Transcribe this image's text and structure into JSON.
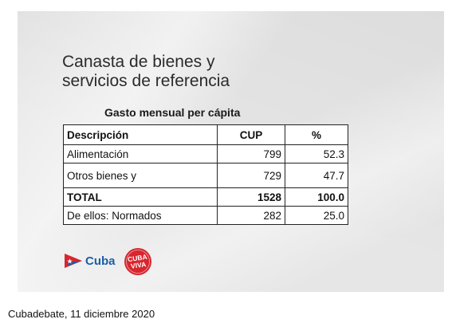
{
  "title_lines": [
    "Canasta de bienes y",
    "servicios de referencia"
  ],
  "subtitle": "Gasto mensual per cápita",
  "table": {
    "headers": [
      "Descripción",
      "CUP",
      "%"
    ],
    "rows": [
      [
        "Alimentación",
        "799",
        "52.3"
      ],
      [
        "Otros bienes y",
        "729",
        "47.7"
      ],
      [
        "TOTAL",
        "1528",
        "100.0"
      ],
      [
        "De ellos: Normados",
        "282",
        "25.0"
      ]
    ]
  },
  "logos": {
    "cuba_label": "Cuba",
    "cubaviva_lines": [
      "CUBA",
      "VIVA"
    ],
    "colors": {
      "blue": "#1b5fa8",
      "red": "#d7262e"
    }
  },
  "caption": "Cubadebate, 11 diciembre 2020"
}
